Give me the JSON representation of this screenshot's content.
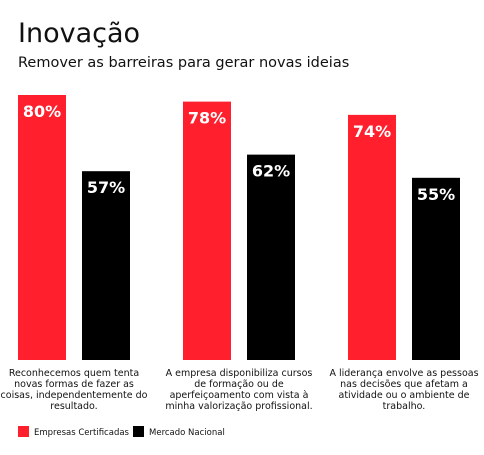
{
  "chart_data": {
    "type": "bar",
    "title": "Inovação",
    "subtitle": "Remover as barreiras para gerar novas ideias",
    "categories": [
      "Reconhecemos quem tenta novas formas de fazer as coisas, independentemente do resultado.",
      "A empresa disponibiliza cursos de formação ou de aperfeiçoamento com vista à minha valorização profissional.",
      "A liderança envolve as pessoas nas decisões que afetam a atividade ou o ambiente de trabalho."
    ],
    "series": [
      {
        "name": "Empresas Certificadas",
        "color": "#ff1f2d",
        "values": [
          80,
          78,
          74
        ],
        "value_labels": [
          "80%",
          "78%",
          "74%"
        ]
      },
      {
        "name": "Mercado Nacional",
        "color": "#000000",
        "values": [
          57,
          62,
          55
        ],
        "value_labels": [
          "57%",
          "62%",
          "55%"
        ]
      }
    ]
  }
}
